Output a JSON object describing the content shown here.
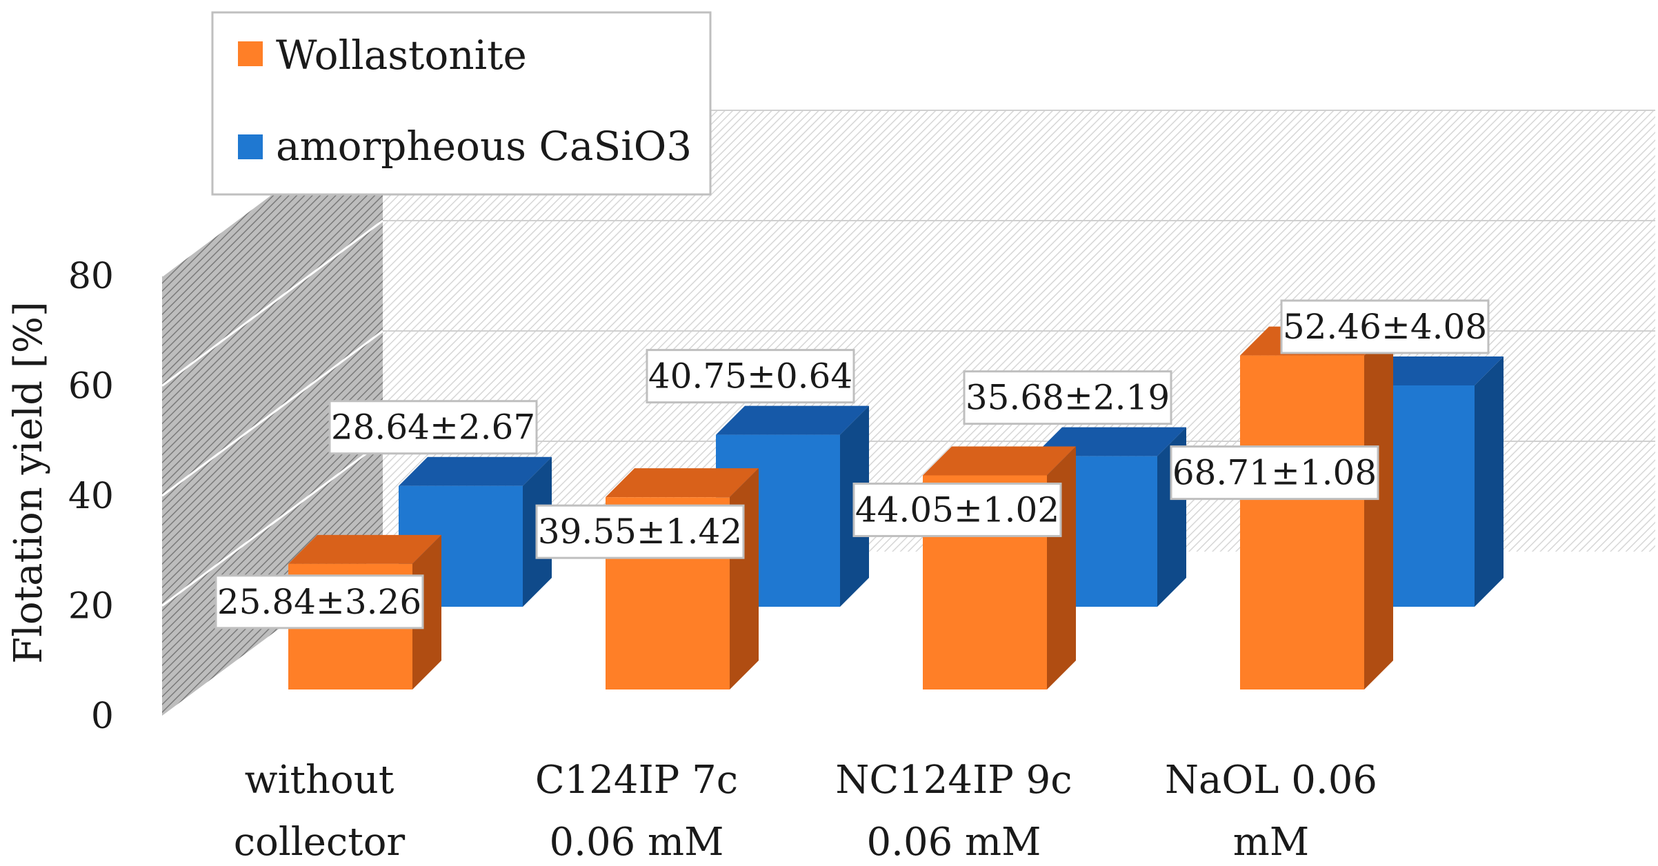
{
  "chart_data": {
    "type": "bar",
    "subtype": "3d-clustered-column",
    "title": "",
    "xlabel": "",
    "ylabel": "Flotation yield [%]",
    "ylim": [
      0,
      80
    ],
    "yticks": [
      0,
      20,
      40,
      60,
      80
    ],
    "categories": [
      [
        "without",
        "collector"
      ],
      [
        "C124IP 7c",
        "0.06 mM"
      ],
      [
        "NC124IP 9c",
        "0.06 mM"
      ],
      [
        "NaOL 0.06",
        "mM"
      ]
    ],
    "series": [
      {
        "name": "Wollastonite",
        "color": "#ff7f27",
        "side_color": "#b04d12",
        "top_color": "#d9611a",
        "values": [
          25.84,
          39.55,
          44.05,
          68.71
        ],
        "labels": [
          "25.84±3.26",
          "39.55±1.42",
          "44.05±1.02",
          "68.71±1.08"
        ]
      },
      {
        "name": "amorpheous CaSiO3",
        "color": "#1f78d1",
        "side_color": "#0f4a8a",
        "top_color": "#1659a8",
        "values": [
          28.64,
          40.75,
          35.68,
          52.46
        ],
        "labels": [
          "28.64±2.67",
          "40.75±0.64",
          "35.68±2.19",
          "52.46±4.08"
        ]
      }
    ],
    "legend_position": "top-left",
    "grid": true
  }
}
